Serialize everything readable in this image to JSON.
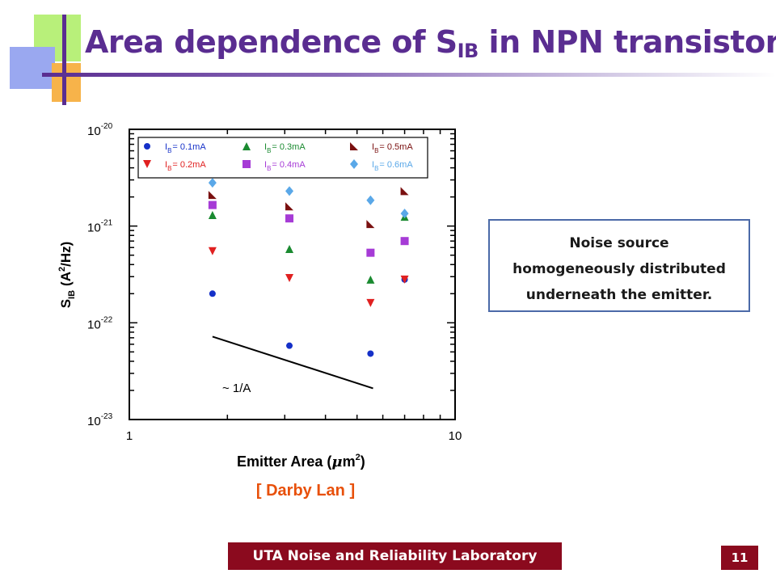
{
  "slide": {
    "title_main": "Area dependence of S",
    "title_sub": "IB",
    "title_tail": " in NPN transistors",
    "note_lines": [
      "Noise source",
      "homogeneously distributed",
      "underneath the emitter."
    ],
    "credit": "[ Darby Lan ]",
    "footer": "UTA Noise and Reliability Laboratory",
    "page_number": "11"
  },
  "colors": {
    "title": "#5a2d91",
    "footer_bg": "#8b0a1e",
    "credit": "#e8500a",
    "note_border": "#4b6aa8"
  },
  "chart_data": {
    "type": "scatter",
    "x_scale": "log",
    "y_scale": "log",
    "xlim": [
      1,
      10
    ],
    "ylim": [
      1e-23,
      1e-20
    ],
    "x_ticks": [
      {
        "v": 1,
        "label": "1"
      },
      {
        "v": 10,
        "label": "10"
      }
    ],
    "y_ticks": [
      {
        "exp": -20,
        "label": "10",
        "sup": "-20"
      },
      {
        "exp": -21,
        "label": "10",
        "sup": "-21"
      },
      {
        "exp": -22,
        "label": "10",
        "sup": "-22"
      },
      {
        "exp": -23,
        "label": "10",
        "sup": "-23"
      }
    ],
    "xlabel_main": "Emitter Area (",
    "xlabel_mu": "μ",
    "xlabel_m": "m",
    "xlabel_sup": "2",
    "xlabel_close": ")",
    "ylabel_S": "S",
    "ylabel_IB": "IB",
    "ylabel_unit": "(A",
    "ylabel_sup": "2",
    "ylabel_unit2": "/Hz)",
    "annotation": "~ 1/A",
    "reference_line": {
      "x": [
        1.8,
        5.6
      ],
      "y": [
        7.2e-23,
        2.1e-23
      ]
    },
    "series": [
      {
        "name_main": "I",
        "name_sub": "B",
        "name_rest": "= 0.1mA",
        "color": "#1530c8",
        "marker": "circle",
        "x": [
          1.8,
          3.1,
          5.5,
          7.0
        ],
        "y": [
          2e-22,
          5.8e-23,
          4.8e-23,
          2.8e-22
        ]
      },
      {
        "name_main": "I",
        "name_sub": "B",
        "name_rest": "= 0.3mA",
        "color": "#1a8a30",
        "marker": "triangle-up",
        "x": [
          1.8,
          3.1,
          5.5,
          7.0
        ],
        "y": [
          1.3e-21,
          5.8e-22,
          2.8e-22,
          1.25e-21
        ]
      },
      {
        "name_main": "I",
        "name_sub": "B",
        "name_rest": "= 0.5mA",
        "color": "#7a1010",
        "marker": "triangle-corner",
        "x": [
          1.8,
          3.1,
          5.5,
          7.0
        ],
        "y": [
          2.1e-21,
          1.6e-21,
          1.05e-21,
          2.3e-21
        ]
      },
      {
        "name_main": "I",
        "name_sub": "B",
        "name_rest": "= 0.2mA",
        "color": "#e02020",
        "marker": "triangle-down",
        "x": [
          1.8,
          3.1,
          5.5,
          7.0
        ],
        "y": [
          5.5e-22,
          2.9e-22,
          1.6e-22,
          2.8e-22
        ]
      },
      {
        "name_main": "I",
        "name_sub": "B",
        "name_rest": "= 0.4mA",
        "color": "#a63bd6",
        "marker": "square",
        "x": [
          1.8,
          3.1,
          5.5,
          7.0
        ],
        "y": [
          1.65e-21,
          1.2e-21,
          5.3e-22,
          7e-22
        ]
      },
      {
        "name_main": "I",
        "name_sub": "B",
        "name_rest": "= 0.6mA",
        "color": "#5aa8e8",
        "marker": "diamond",
        "x": [
          1.8,
          3.1,
          5.5,
          7.0
        ],
        "y": [
          2.8e-21,
          2.3e-21,
          1.85e-21,
          1.35e-21
        ]
      }
    ]
  }
}
